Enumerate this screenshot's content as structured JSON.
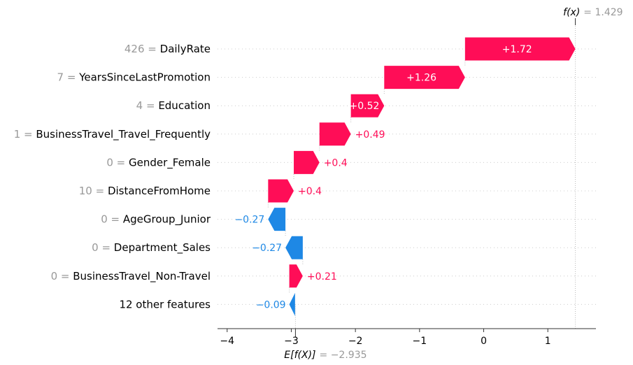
{
  "chart_data": {
    "type": "waterfall",
    "xlim": [
      -4.15,
      1.75
    ],
    "xticks": [
      {
        "value": -4,
        "label": "−4"
      },
      {
        "value": -3,
        "label": "−3"
      },
      {
        "value": -2,
        "label": "−2"
      },
      {
        "value": -1,
        "label": "−1"
      },
      {
        "value": 0,
        "label": "0"
      },
      {
        "value": 1,
        "label": "1"
      }
    ],
    "base_value": -2.935,
    "base_label": "E[f(X)]",
    "base_value_text": "= −2.935",
    "final_value": 1.429,
    "final_label": "f(x)",
    "final_value_text": "= 1.429",
    "positive_color": "#ff0d57",
    "negative_color": "#1e88e5",
    "features": [
      {
        "value_text": "426",
        "name": "DailyRate",
        "contribution": 1.72,
        "label": "+1.72"
      },
      {
        "value_text": "7",
        "name": "YearsSinceLastPromotion",
        "contribution": 1.26,
        "label": "+1.26"
      },
      {
        "value_text": "4",
        "name": "Education",
        "contribution": 0.52,
        "label": "+0.52"
      },
      {
        "value_text": "1",
        "name": "BusinessTravel_Travel_Frequently",
        "contribution": 0.49,
        "label": "+0.49"
      },
      {
        "value_text": "0",
        "name": "Gender_Female",
        "contribution": 0.4,
        "label": "+0.4"
      },
      {
        "value_text": "10",
        "name": "DistanceFromHome",
        "contribution": 0.4,
        "label": "+0.4"
      },
      {
        "value_text": "0",
        "name": "AgeGroup_Junior",
        "contribution": -0.27,
        "label": "−0.27"
      },
      {
        "value_text": "0",
        "name": "Department_Sales",
        "contribution": -0.27,
        "label": "−0.27"
      },
      {
        "value_text": "0",
        "name": "BusinessTravel_Non-Travel",
        "contribution": 0.21,
        "label": "+0.21"
      },
      {
        "value_text": "",
        "name": "12 other features",
        "contribution": -0.09,
        "label": "−0.09"
      }
    ]
  }
}
